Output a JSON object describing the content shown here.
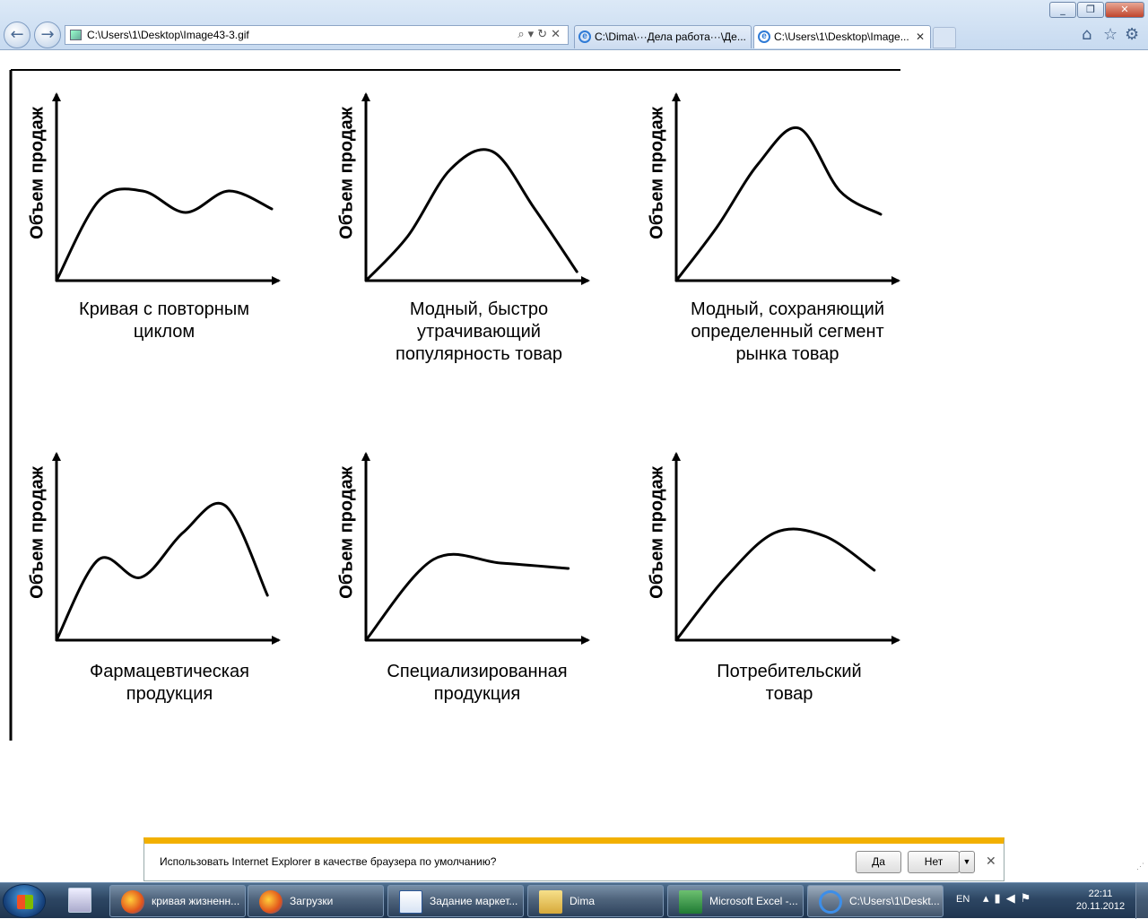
{
  "browser": {
    "address": "C:\\Users\\1\\Desktop\\Image43-3.gif",
    "tabs": [
      {
        "label": "C:\\Dima\\···Дела  работа···\\Де..."
      },
      {
        "label": "C:\\Users\\1\\Desktop\\Image..."
      }
    ]
  },
  "figure": {
    "ylabel": "Объем продаж"
  },
  "chart_data": [
    {
      "type": "line",
      "title": "Кривая с повторным циклом",
      "series": [
        {
          "values": [
            0.0,
            0.45,
            0.5,
            0.38,
            0.5,
            0.4
          ]
        }
      ]
    },
    {
      "type": "line",
      "title": "Модный, быстро утрачивающий популярность товар",
      "series": [
        {
          "values": [
            0.0,
            0.25,
            0.62,
            0.72,
            0.4,
            0.05
          ]
        }
      ]
    },
    {
      "type": "line",
      "title": "Модный, сохраняющий определенный сегмент рынка товар",
      "series": [
        {
          "values": [
            0.0,
            0.3,
            0.65,
            0.85,
            0.5,
            0.37
          ]
        }
      ]
    },
    {
      "type": "line",
      "title": "Фармацевтическая продукция",
      "series": [
        {
          "values": [
            0.0,
            0.45,
            0.35,
            0.6,
            0.75,
            0.25
          ]
        }
      ]
    },
    {
      "type": "line",
      "title": "Специализированная продукция",
      "series": [
        {
          "values": [
            0.0,
            0.45,
            0.43,
            0.4
          ]
        }
      ]
    },
    {
      "type": "line",
      "title": "Потребительский товар",
      "series": [
        {
          "values": [
            0.0,
            0.35,
            0.6,
            0.58,
            0.39
          ]
        }
      ]
    }
  ],
  "infobar": {
    "message": "Использовать Internet Explorer в качестве браузера по умолчанию?",
    "yes": "Да",
    "no": "Нет"
  },
  "taskbar": {
    "items": [
      {
        "label": "кривая жизненн..."
      },
      {
        "label": "Загрузки"
      },
      {
        "label": "Задание маркет..."
      },
      {
        "label": "Dima"
      },
      {
        "label": "Microsoft Excel -..."
      },
      {
        "label": "C:\\Users\\1\\Deskt..."
      }
    ],
    "lang": "EN",
    "time": "22:11",
    "date": "20.11.2012"
  }
}
